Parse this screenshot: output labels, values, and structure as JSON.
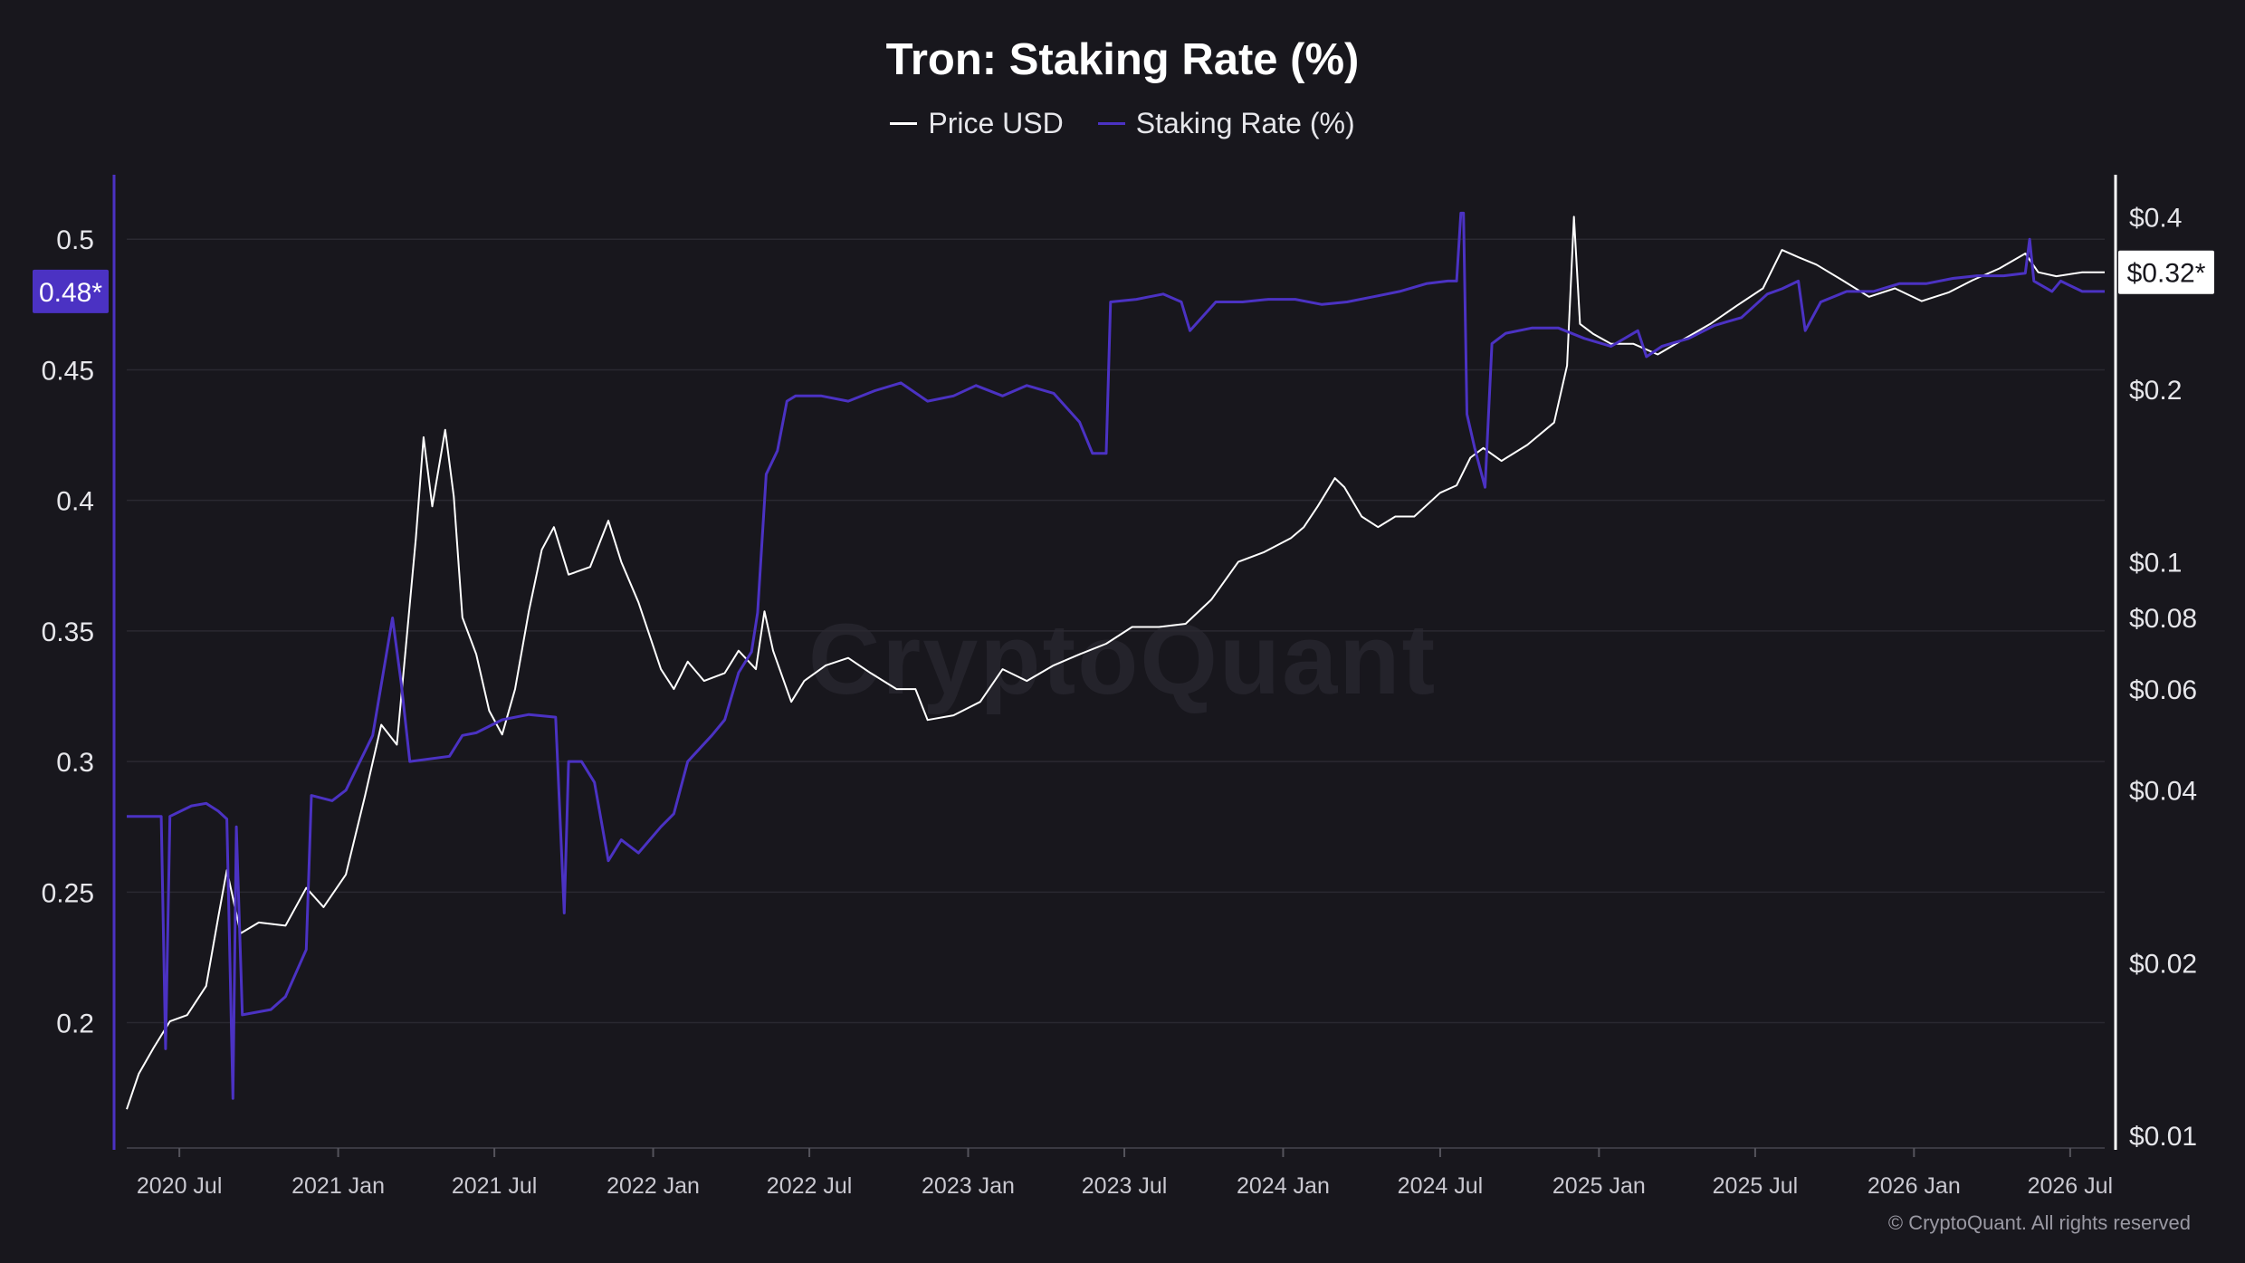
{
  "chart_data": {
    "type": "line",
    "title": "Tron: Staking Rate (%)",
    "legend_position": "top-center",
    "grid": true,
    "x_type": "date",
    "x_tick_labels": [
      "2020 Jul",
      "2021 Jan",
      "2021 Jul",
      "2022 Jan",
      "2022 Jul",
      "2023 Jan",
      "2023 Jul",
      "2024 Jan",
      "2024 Jul",
      "2025 Jan",
      "2025 Jul",
      "2026 Jan",
      "2026 Jul"
    ],
    "x_tick_dates": [
      "2020-07-01",
      "2021-01-01",
      "2021-07-01",
      "2022-01-01",
      "2022-07-01",
      "2023-01-01",
      "2023-07-01",
      "2024-01-01",
      "2024-07-01",
      "2025-01-01",
      "2025-07-01",
      "2026-01-01",
      "2026-07-01"
    ],
    "xlim": [
      "2020-05-01",
      "2026-08-10"
    ],
    "y_left": {
      "series": "Staking Rate (%)",
      "ylim": [
        0.152,
        0.524
      ],
      "ticks": [
        0.2,
        0.25,
        0.3,
        0.35,
        0.4,
        0.45,
        0.5
      ],
      "tick_labels": [
        "0.2",
        "0.25",
        "0.3",
        "0.35",
        "0.4",
        "0.45",
        "0.5"
      ],
      "current_label": "0.48*",
      "current_value": 0.48
    },
    "y_right": {
      "series": "Price USD",
      "scale": "log",
      "ylim": [
        0.0095,
        0.47
      ],
      "ticks": [
        0.01,
        0.02,
        0.04,
        0.06,
        0.08,
        0.1,
        0.2,
        0.4
      ],
      "tick_labels": [
        "$0.01",
        "$0.02",
        "$0.04",
        "$0.06",
        "$0.08",
        "$0.1",
        "$0.2",
        "$0.4"
      ],
      "current_label": "$0.32*",
      "current_value": 0.32
    },
    "series": [
      {
        "name": "Price USD",
        "axis": "right",
        "color": "#ffffff",
        "points": [
          [
            "2020-05-01",
            0.0111
          ],
          [
            "2020-05-15",
            0.0128
          ],
          [
            "2020-06-01",
            0.0142
          ],
          [
            "2020-06-20",
            0.0158
          ],
          [
            "2020-07-10",
            0.0162
          ],
          [
            "2020-08-01",
            0.0182
          ],
          [
            "2020-08-15",
            0.024
          ],
          [
            "2020-08-25",
            0.029
          ],
          [
            "2020-09-10",
            0.0225
          ],
          [
            "2020-10-01",
            0.0235
          ],
          [
            "2020-11-01",
            0.0232
          ],
          [
            "2020-11-25",
            0.027
          ],
          [
            "2020-12-15",
            0.025
          ],
          [
            "2021-01-10",
            0.0285
          ],
          [
            "2021-02-01",
            0.039
          ],
          [
            "2021-02-20",
            0.052
          ],
          [
            "2021-03-10",
            0.048
          ],
          [
            "2021-04-01",
            0.11
          ],
          [
            "2021-04-10",
            0.165
          ],
          [
            "2021-04-20",
            0.125
          ],
          [
            "2021-05-05",
            0.17
          ],
          [
            "2021-05-15",
            0.13
          ],
          [
            "2021-05-25",
            0.08
          ],
          [
            "2021-06-10",
            0.069
          ],
          [
            "2021-06-25",
            0.055
          ],
          [
            "2021-07-10",
            0.05
          ],
          [
            "2021-07-25",
            0.06
          ],
          [
            "2021-08-10",
            0.082
          ],
          [
            "2021-08-25",
            0.105
          ],
          [
            "2021-09-08",
            0.115
          ],
          [
            "2021-09-25",
            0.095
          ],
          [
            "2021-10-20",
            0.098
          ],
          [
            "2021-11-10",
            0.118
          ],
          [
            "2021-11-25",
            0.1
          ],
          [
            "2021-12-15",
            0.085
          ],
          [
            "2022-01-10",
            0.065
          ],
          [
            "2022-01-25",
            0.06
          ],
          [
            "2022-02-10",
            0.067
          ],
          [
            "2022-03-01",
            0.062
          ],
          [
            "2022-03-25",
            0.064
          ],
          [
            "2022-04-10",
            0.07
          ],
          [
            "2022-04-30",
            0.065
          ],
          [
            "2022-05-10",
            0.082
          ],
          [
            "2022-05-20",
            0.07
          ],
          [
            "2022-06-10",
            0.057
          ],
          [
            "2022-06-25",
            0.062
          ],
          [
            "2022-07-20",
            0.066
          ],
          [
            "2022-08-15",
            0.068
          ],
          [
            "2022-09-10",
            0.064
          ],
          [
            "2022-10-10",
            0.06
          ],
          [
            "2022-11-01",
            0.06
          ],
          [
            "2022-11-15",
            0.053
          ],
          [
            "2022-12-15",
            0.054
          ],
          [
            "2023-01-15",
            0.057
          ],
          [
            "2023-02-10",
            0.065
          ],
          [
            "2023-03-10",
            0.062
          ],
          [
            "2023-04-10",
            0.066
          ],
          [
            "2023-05-10",
            0.069
          ],
          [
            "2023-06-10",
            0.072
          ],
          [
            "2023-07-10",
            0.077
          ],
          [
            "2023-08-10",
            0.077
          ],
          [
            "2023-09-10",
            0.078
          ],
          [
            "2023-10-10",
            0.086
          ],
          [
            "2023-11-10",
            0.1
          ],
          [
            "2023-12-10",
            0.104
          ],
          [
            "2024-01-10",
            0.11
          ],
          [
            "2024-01-25",
            0.115
          ],
          [
            "2024-02-10",
            0.125
          ],
          [
            "2024-03-01",
            0.14
          ],
          [
            "2024-03-12",
            0.135
          ],
          [
            "2024-04-01",
            0.12
          ],
          [
            "2024-04-20",
            0.115
          ],
          [
            "2024-05-10",
            0.12
          ],
          [
            "2024-06-01",
            0.12
          ],
          [
            "2024-07-01",
            0.132
          ],
          [
            "2024-07-20",
            0.136
          ],
          [
            "2024-08-05",
            0.152
          ],
          [
            "2024-08-20",
            0.158
          ],
          [
            "2024-09-10",
            0.15
          ],
          [
            "2024-10-10",
            0.16
          ],
          [
            "2024-11-10",
            0.175
          ],
          [
            "2024-11-25",
            0.22
          ],
          [
            "2024-12-03",
            0.4
          ],
          [
            "2024-12-10",
            0.26
          ],
          [
            "2024-12-25",
            0.25
          ],
          [
            "2025-01-15",
            0.24
          ],
          [
            "2025-02-10",
            0.24
          ],
          [
            "2025-03-10",
            0.23
          ],
          [
            "2025-04-10",
            0.245
          ],
          [
            "2025-05-10",
            0.26
          ],
          [
            "2025-06-10",
            0.28
          ],
          [
            "2025-07-10",
            0.3
          ],
          [
            "2025-08-01",
            0.35
          ],
          [
            "2025-08-20",
            0.34
          ],
          [
            "2025-09-10",
            0.33
          ],
          [
            "2025-10-10",
            0.31
          ],
          [
            "2025-11-10",
            0.29
          ],
          [
            "2025-12-10",
            0.3
          ],
          [
            "2026-01-10",
            0.285
          ],
          [
            "2026-02-10",
            0.295
          ],
          [
            "2026-03-10",
            0.31
          ],
          [
            "2026-04-10",
            0.325
          ],
          [
            "2026-05-10",
            0.345
          ],
          [
            "2026-05-25",
            0.32
          ],
          [
            "2026-06-15",
            0.315
          ],
          [
            "2026-07-15",
            0.32
          ],
          [
            "2026-08-10",
            0.32
          ]
        ]
      },
      {
        "name": "Staking Rate (%)",
        "axis": "left",
        "color": "#4b32c3",
        "points": [
          [
            "2020-05-01",
            0.279
          ],
          [
            "2020-06-10",
            0.279
          ],
          [
            "2020-06-15",
            0.19
          ],
          [
            "2020-06-20",
            0.279
          ],
          [
            "2020-07-15",
            0.283
          ],
          [
            "2020-08-01",
            0.284
          ],
          [
            "2020-08-15",
            0.281
          ],
          [
            "2020-08-25",
            0.278
          ],
          [
            "2020-09-01",
            0.171
          ],
          [
            "2020-09-05",
            0.275
          ],
          [
            "2020-09-12",
            0.203
          ],
          [
            "2020-10-15",
            0.205
          ],
          [
            "2020-11-01",
            0.21
          ],
          [
            "2020-11-25",
            0.228
          ],
          [
            "2020-12-01",
            0.287
          ],
          [
            "2020-12-25",
            0.285
          ],
          [
            "2021-01-10",
            0.289
          ],
          [
            "2021-02-10",
            0.31
          ],
          [
            "2021-03-05",
            0.355
          ],
          [
            "2021-03-15",
            0.33
          ],
          [
            "2021-03-25",
            0.3
          ],
          [
            "2021-05-10",
            0.302
          ],
          [
            "2021-05-25",
            0.31
          ],
          [
            "2021-06-10",
            0.311
          ],
          [
            "2021-07-10",
            0.316
          ],
          [
            "2021-08-10",
            0.318
          ],
          [
            "2021-09-10",
            0.317
          ],
          [
            "2021-09-20",
            0.242
          ],
          [
            "2021-09-25",
            0.3
          ],
          [
            "2021-10-10",
            0.3
          ],
          [
            "2021-10-25",
            0.292
          ],
          [
            "2021-11-10",
            0.262
          ],
          [
            "2021-11-25",
            0.27
          ],
          [
            "2021-12-15",
            0.265
          ],
          [
            "2022-01-10",
            0.275
          ],
          [
            "2022-01-25",
            0.28
          ],
          [
            "2022-02-10",
            0.3
          ],
          [
            "2022-03-10",
            0.31
          ],
          [
            "2022-03-25",
            0.316
          ],
          [
            "2022-04-10",
            0.334
          ],
          [
            "2022-04-25",
            0.342
          ],
          [
            "2022-05-02",
            0.357
          ],
          [
            "2022-05-12",
            0.41
          ],
          [
            "2022-05-25",
            0.419
          ],
          [
            "2022-06-05",
            0.438
          ],
          [
            "2022-06-15",
            0.44
          ],
          [
            "2022-07-15",
            0.44
          ],
          [
            "2022-08-15",
            0.438
          ],
          [
            "2022-09-15",
            0.442
          ],
          [
            "2022-10-15",
            0.445
          ],
          [
            "2022-11-15",
            0.438
          ],
          [
            "2022-12-15",
            0.44
          ],
          [
            "2023-01-10",
            0.444
          ],
          [
            "2023-02-10",
            0.44
          ],
          [
            "2023-03-10",
            0.444
          ],
          [
            "2023-04-10",
            0.441
          ],
          [
            "2023-05-10",
            0.43
          ],
          [
            "2023-05-25",
            0.418
          ],
          [
            "2023-06-10",
            0.418
          ],
          [
            "2023-06-15",
            0.476
          ],
          [
            "2023-07-15",
            0.477
          ],
          [
            "2023-08-15",
            0.479
          ],
          [
            "2023-09-05",
            0.476
          ],
          [
            "2023-09-15",
            0.465
          ],
          [
            "2023-10-15",
            0.476
          ],
          [
            "2023-11-15",
            0.476
          ],
          [
            "2023-12-15",
            0.477
          ],
          [
            "2024-01-15",
            0.477
          ],
          [
            "2024-02-15",
            0.475
          ],
          [
            "2024-03-15",
            0.476
          ],
          [
            "2024-04-15",
            0.478
          ],
          [
            "2024-05-15",
            0.48
          ],
          [
            "2024-06-15",
            0.483
          ],
          [
            "2024-07-10",
            0.484
          ],
          [
            "2024-07-20",
            0.484
          ],
          [
            "2024-07-25",
            0.51
          ],
          [
            "2024-07-28",
            0.51
          ],
          [
            "2024-08-01",
            0.433
          ],
          [
            "2024-08-10",
            0.42
          ],
          [
            "2024-08-22",
            0.405
          ],
          [
            "2024-08-30",
            0.46
          ],
          [
            "2024-09-15",
            0.464
          ],
          [
            "2024-10-15",
            0.466
          ],
          [
            "2024-11-15",
            0.466
          ],
          [
            "2024-12-15",
            0.462
          ],
          [
            "2025-01-15",
            0.459
          ],
          [
            "2025-02-15",
            0.465
          ],
          [
            "2025-02-25",
            0.455
          ],
          [
            "2025-03-15",
            0.459
          ],
          [
            "2025-04-15",
            0.462
          ],
          [
            "2025-05-15",
            0.467
          ],
          [
            "2025-06-15",
            0.47
          ],
          [
            "2025-07-15",
            0.479
          ],
          [
            "2025-08-01",
            0.481
          ],
          [
            "2025-08-20",
            0.484
          ],
          [
            "2025-08-28",
            0.465
          ],
          [
            "2025-09-15",
            0.476
          ],
          [
            "2025-10-15",
            0.48
          ],
          [
            "2025-11-15",
            0.48
          ],
          [
            "2025-12-15",
            0.483
          ],
          [
            "2026-01-15",
            0.483
          ],
          [
            "2026-02-15",
            0.485
          ],
          [
            "2026-03-15",
            0.486
          ],
          [
            "2026-04-15",
            0.486
          ],
          [
            "2026-05-10",
            0.487
          ],
          [
            "2026-05-15",
            0.5
          ],
          [
            "2026-05-20",
            0.484
          ],
          [
            "2026-06-10",
            0.48
          ],
          [
            "2026-06-20",
            0.484
          ],
          [
            "2026-07-15",
            0.48
          ],
          [
            "2026-08-10",
            0.48
          ]
        ]
      }
    ]
  },
  "legend": {
    "price_label": "Price USD",
    "staking_label": "Staking Rate (%)"
  },
  "watermark": "CryptoQuant",
  "copyright": "© CryptoQuant. All rights reserved",
  "colors": {
    "background": "#18171d",
    "grid": "#2a2931",
    "staking": "#4b32c3",
    "price": "#ffffff",
    "axis_text": "#e6e6ea"
  }
}
